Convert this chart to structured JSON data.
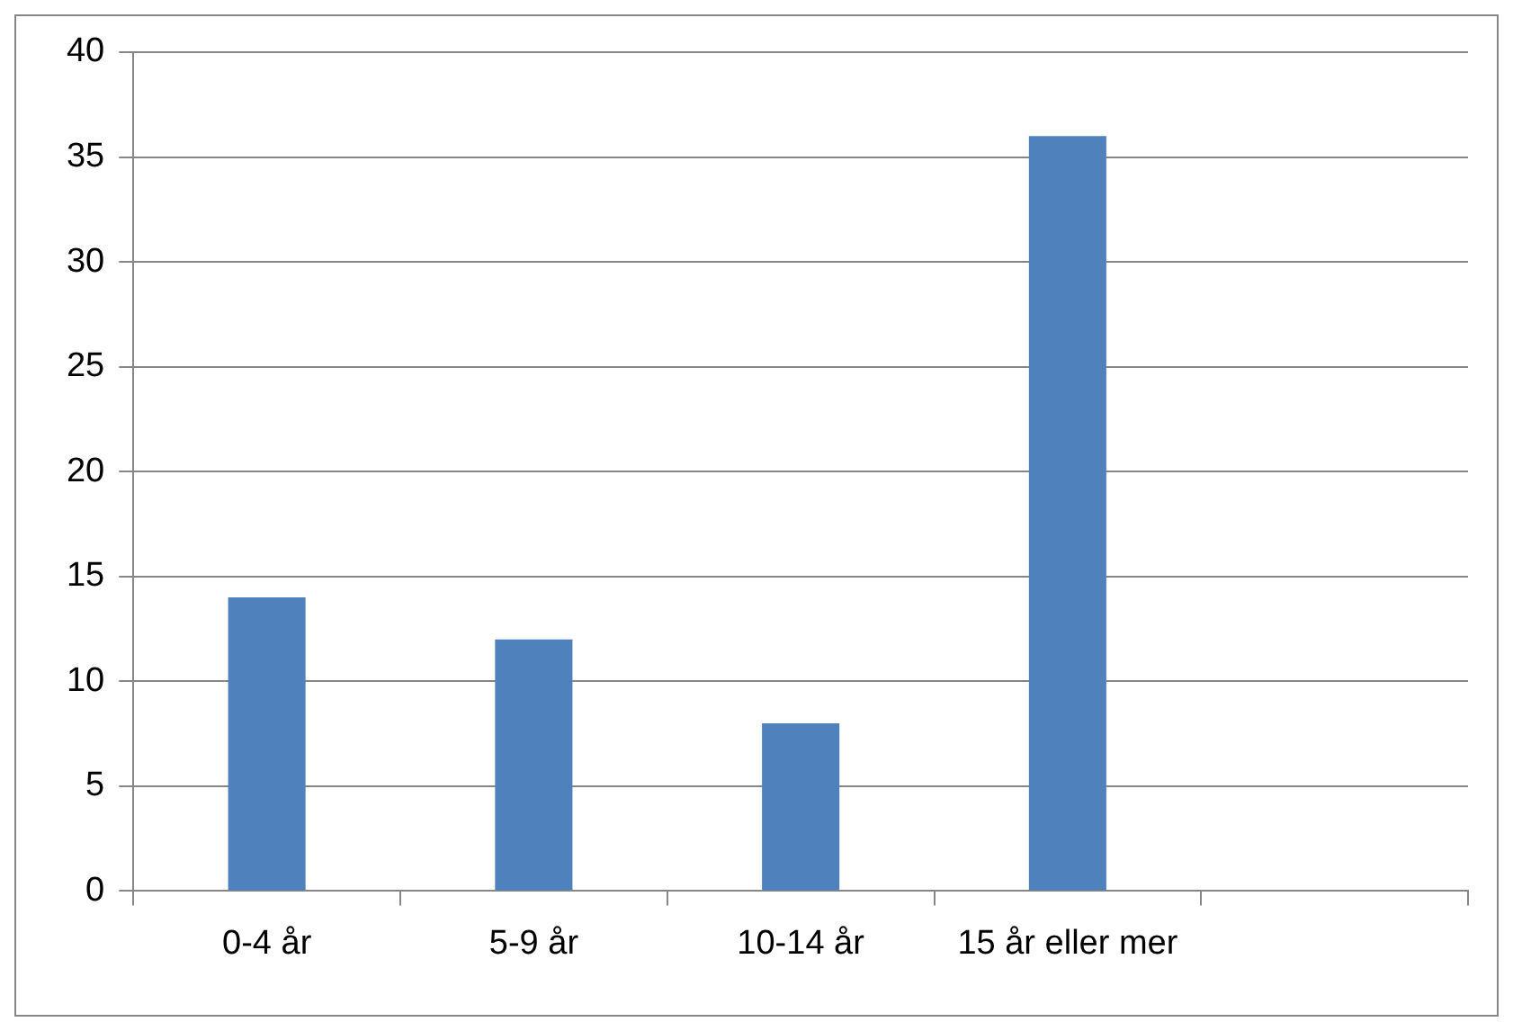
{
  "chart_data": {
    "type": "bar",
    "categories": [
      "0-4 år",
      "5-9 år",
      "10-14 år",
      "15 år eller mer",
      null
    ],
    "values": [
      14,
      12,
      8,
      36,
      null
    ],
    "color": "#4f81bd",
    "ylim": [
      0,
      40
    ],
    "yticks": [
      0,
      5,
      10,
      15,
      20,
      25,
      30,
      35,
      40
    ],
    "grid": "y",
    "legend": false
  }
}
